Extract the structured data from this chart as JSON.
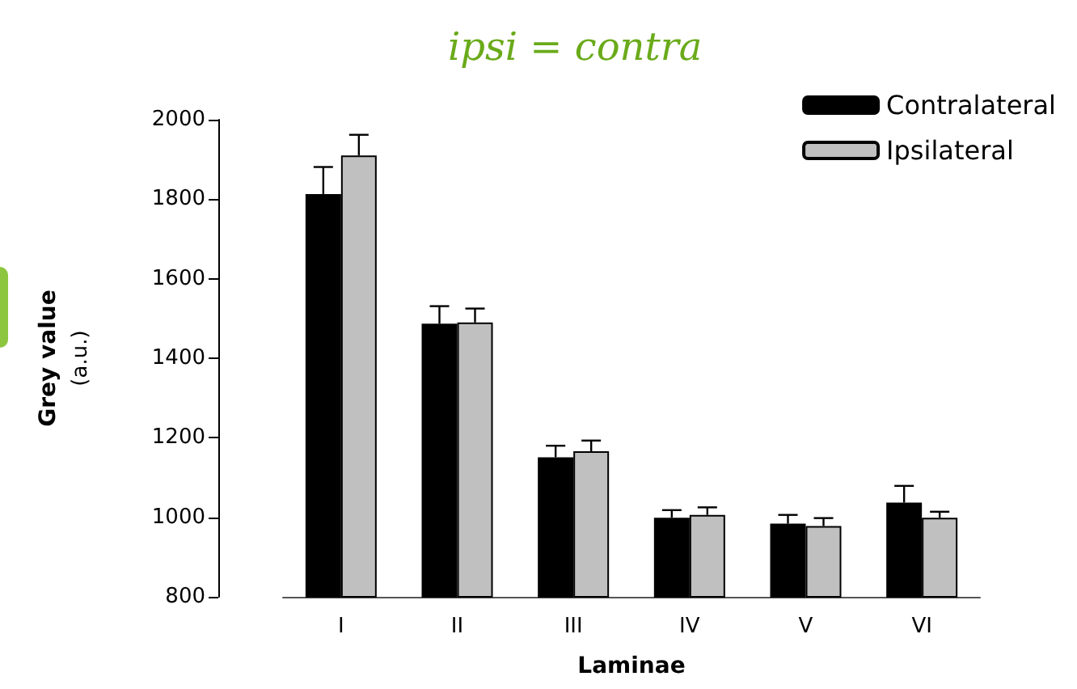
{
  "chart_data": {
    "type": "bar",
    "title": "ipsi = contra",
    "xlabel": "Laminae",
    "ylabel": "Grey value\n(a.u.)",
    "categories": [
      "I",
      "II",
      "III",
      "IV",
      "V",
      "VI"
    ],
    "series": [
      {
        "name": "Contralateral",
        "color": "#000000",
        "values": [
          1813,
          1487,
          1151,
          999,
          984,
          1037
        ],
        "errors": [
          [
            1813,
            1881
          ],
          [
            1487,
            1531
          ],
          [
            1151,
            1180
          ],
          [
            999,
            1018
          ],
          [
            984,
            1006
          ],
          [
            1037,
            1079
          ]
        ]
      },
      {
        "name": "Ipsilateral",
        "color": "#c0c0c0",
        "values": [
          1910,
          1490,
          1166,
          1006,
          978,
          999
        ],
        "errors": [
          [
            1910,
            1962
          ],
          [
            1490,
            1525
          ],
          [
            1166,
            1193
          ],
          [
            1006,
            1025
          ],
          [
            978,
            998
          ],
          [
            999,
            1014
          ]
        ]
      }
    ],
    "ylim": [
      800,
      2000
    ],
    "yticks": [
      800,
      1000,
      1200,
      1400,
      1600,
      1800,
      2000
    ],
    "grid": false,
    "legend": "top right"
  }
}
